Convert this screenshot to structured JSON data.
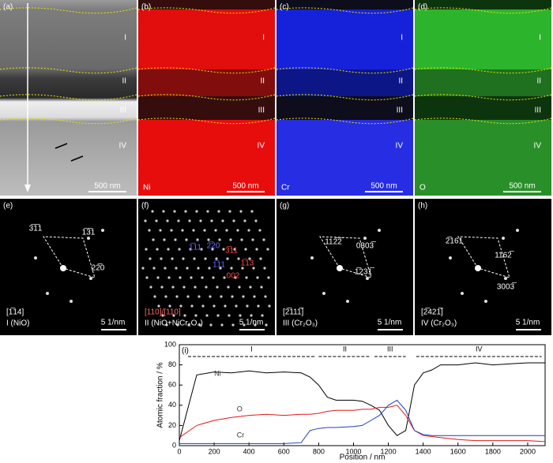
{
  "panels": [
    {
      "label": "(a)",
      "scale_bar": "500 nm",
      "layers": [
        "I",
        "II",
        "III",
        "IV"
      ]
    },
    {
      "label": "(b)",
      "element": "Ni",
      "scale_bar": "500 nm",
      "layers": [
        "I",
        "II",
        "III",
        "IV"
      ]
    },
    {
      "label": "(c)",
      "element": "Cr",
      "scale_bar": "500 nm",
      "layers": [
        "I",
        "II",
        "III",
        "IV"
      ]
    },
    {
      "label": "(d)",
      "element": "O",
      "scale_bar": "500 nm",
      "layers": [
        "I",
        "II",
        "III",
        "IV"
      ]
    }
  ],
  "diffraction": [
    {
      "label": "(e)",
      "zone_axis": "[1̅14]",
      "phase": "I (NiO)",
      "scale_bar": "5 1/nm",
      "spots": [
        "3̅1̅1",
        "1̅3̅1",
        "22̅0"
      ]
    },
    {
      "label": "(f)",
      "zone_axis": "[110]/[110]",
      "phase": "II (NiO+NiCr₂O₄)",
      "scale_bar": "5 1/nm",
      "spots": [
        "1̅11",
        "2̅20",
        "3̅11",
        "1̅11",
        "1̅13",
        "002"
      ]
    },
    {
      "label": "(g)",
      "zone_axis": "[2̅111̅]",
      "phase": "III (Cr₂O₃)",
      "scale_bar": "5 1/nm",
      "spots": [
        "112̅2̅",
        "0303̅",
        "1̅231̅",
        "|"
      ]
    },
    {
      "label": "(h)",
      "zone_axis": "[2̅421̅]",
      "phase": "IV (Cr₂O₃)",
      "scale_bar": "5 1/nm",
      "spots": [
        "2̅161",
        "1162̅",
        "3003̅"
      ]
    }
  ],
  "chart_data": {
    "type": "line",
    "label": "(i)",
    "x_label": "Position / nm",
    "y_label": "Atomic fraction / %",
    "x": [
      0,
      100,
      200,
      300,
      400,
      500,
      600,
      700,
      750,
      800,
      850,
      900,
      1000,
      1050,
      1100,
      1150,
      1200,
      1250,
      1300,
      1350,
      1400,
      1450,
      1500,
      1600,
      1700,
      1800,
      1900,
      2000,
      2100
    ],
    "series": [
      {
        "name": "Ni",
        "color": "#000000",
        "values": [
          5,
          70,
          73,
          72,
          74,
          72,
          73,
          72,
          68,
          60,
          48,
          45,
          45,
          44,
          40,
          35,
          20,
          10,
          15,
          60,
          72,
          75,
          80,
          80,
          82,
          80,
          81,
          82,
          82
        ]
      },
      {
        "name": "O",
        "color": "#e0191c",
        "values": [
          8,
          20,
          25,
          28,
          30,
          31,
          30,
          31,
          31,
          32,
          34,
          35,
          35,
          36,
          36,
          38,
          38,
          40,
          30,
          15,
          10,
          9,
          8,
          6,
          5,
          5,
          5,
          5,
          4
        ]
      },
      {
        "name": "Cr",
        "color": "#1f3fbf",
        "values": [
          2,
          2,
          2,
          2,
          2,
          2,
          2,
          3,
          15,
          17,
          18,
          18,
          19,
          20,
          25,
          30,
          40,
          45,
          35,
          15,
          11,
          10,
          10,
          10,
          10,
          10,
          10,
          10,
          10
        ]
      }
    ],
    "regions": [
      {
        "label": "I",
        "from": 50,
        "to": 780
      },
      {
        "label": "II",
        "from": 800,
        "to": 1100
      },
      {
        "label": "III",
        "from": 1120,
        "to": 1300
      },
      {
        "label": "IV",
        "from": 1360,
        "to": 2080
      }
    ],
    "xlim": [
      0,
      2100
    ],
    "xticks": [
      0,
      200,
      400,
      600,
      800,
      1000,
      1200,
      1400,
      1600,
      1800,
      2000
    ],
    "ylim": [
      0,
      100
    ],
    "yticks": [
      0,
      20,
      40,
      60,
      80,
      100
    ]
  }
}
